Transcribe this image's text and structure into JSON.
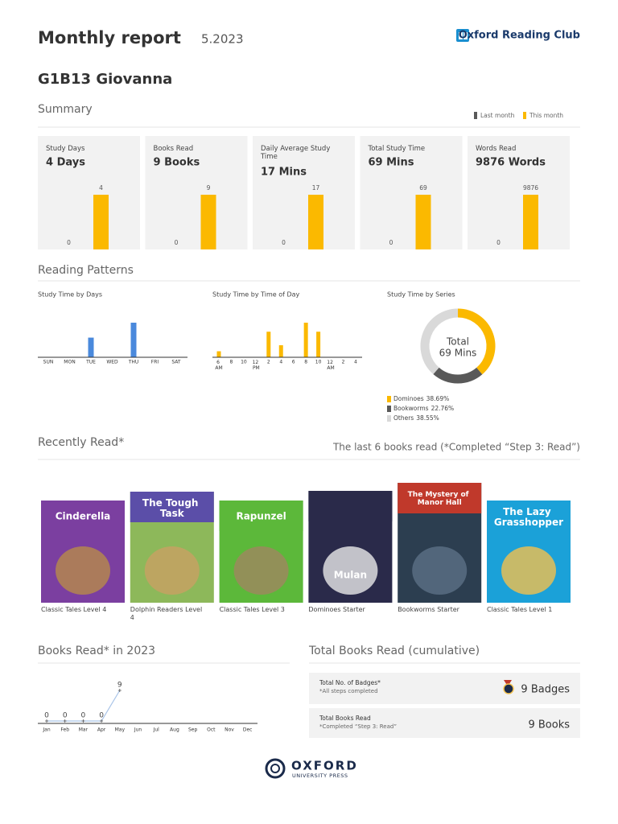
{
  "header": {
    "title": "Monthly report",
    "date": "5.2023",
    "brand": "Oxford Reading Club"
  },
  "student": "G1B13 Giovanna",
  "summary": {
    "title": "Summary",
    "legend": [
      {
        "name": "Last month",
        "color": "#595959"
      },
      {
        "name": "This month",
        "color": "#fbb900"
      }
    ],
    "cards": [
      {
        "label": "Study Days",
        "value": "4 Days",
        "last_month": 0,
        "this_month": 4
      },
      {
        "label": "Books Read",
        "value": "9 Books",
        "last_month": 0,
        "this_month": 9
      },
      {
        "label": "Daily Average Study Time",
        "value": "17 Mins",
        "last_month": 0,
        "this_month": 17
      },
      {
        "label": "Total Study Time",
        "value": "69 Mins",
        "last_month": 0,
        "this_month": 69
      },
      {
        "label": "Words Read",
        "value": "9876 Words",
        "last_month": 0,
        "this_month": 9876
      }
    ]
  },
  "reading_patterns": {
    "title": "Reading Patterns"
  },
  "chart_data": [
    {
      "type": "bar",
      "title": "Study Time by Days",
      "categories": [
        "SUN",
        "MON",
        "TUE",
        "WED",
        "THU",
        "FRI",
        "SAT"
      ],
      "values": [
        0,
        0,
        25,
        0,
        44,
        0,
        0
      ],
      "color": "#4a89dc"
    },
    {
      "type": "bar",
      "title": "Study Time by Time of Day",
      "categories": [
        "6 AM",
        "8",
        "10",
        "12 PM",
        "2",
        "4",
        "6",
        "8",
        "10",
        "12 AM",
        "2",
        "4"
      ],
      "values": [
        4,
        0,
        0,
        0,
        17,
        8,
        0,
        23,
        17,
        0,
        0,
        0
      ],
      "color": "#fbb900"
    },
    {
      "type": "pie",
      "title": "Study Time by Series",
      "center_label": "Total",
      "center_value": "69 Mins",
      "categories": [
        "Dominoes",
        "Bookworms",
        "Others"
      ],
      "values": [
        38.69,
        22.76,
        38.55
      ],
      "value_labels": [
        "38.69%",
        "22.76%",
        "38.55%"
      ],
      "colors": [
        "#fbb900",
        "#595959",
        "#d9d9d9"
      ]
    },
    {
      "type": "line",
      "title": "Books Read* in 2023",
      "categories": [
        "Jan",
        "Feb",
        "Mar",
        "Apr",
        "May",
        "Jun",
        "Jul",
        "Aug",
        "Sep",
        "Oct",
        "Nov",
        "Dec"
      ],
      "values": [
        0,
        0,
        0,
        0,
        9,
        null,
        null,
        null,
        null,
        null,
        null,
        null
      ],
      "color": "#a9c4e8"
    }
  ],
  "recently_read": {
    "title": "Recently Read*",
    "note": "The last 6 books read (*Completed “Step 3: Read”)",
    "books": [
      {
        "title": "Cinderella",
        "series": "Classic Tales Level 4"
      },
      {
        "title": "The Tough Task",
        "series": "Dolphin Readers Level 4"
      },
      {
        "title": "Rapunzel",
        "series": "Classic Tales Level 3"
      },
      {
        "title": "Mulan",
        "series": "Dominoes Starter"
      },
      {
        "title": "The Mystery of Manor Hall",
        "series": "Bookworms Starter"
      },
      {
        "title": "The Lazy Grasshopper",
        "series": "Classic Tales Level 1"
      }
    ]
  },
  "totals": {
    "title": "Total Books Read (cumulative)",
    "rows": [
      {
        "label": "Total No. of Badges*",
        "note": "*All steps completed",
        "value": "9 Badges"
      },
      {
        "label": "Total Books Read",
        "note": "*Completed “Step 3: Read”",
        "value": "9 Books"
      }
    ]
  },
  "footer": {
    "brand": "OXFORD",
    "subtitle": "UNIVERSITY PRESS"
  }
}
